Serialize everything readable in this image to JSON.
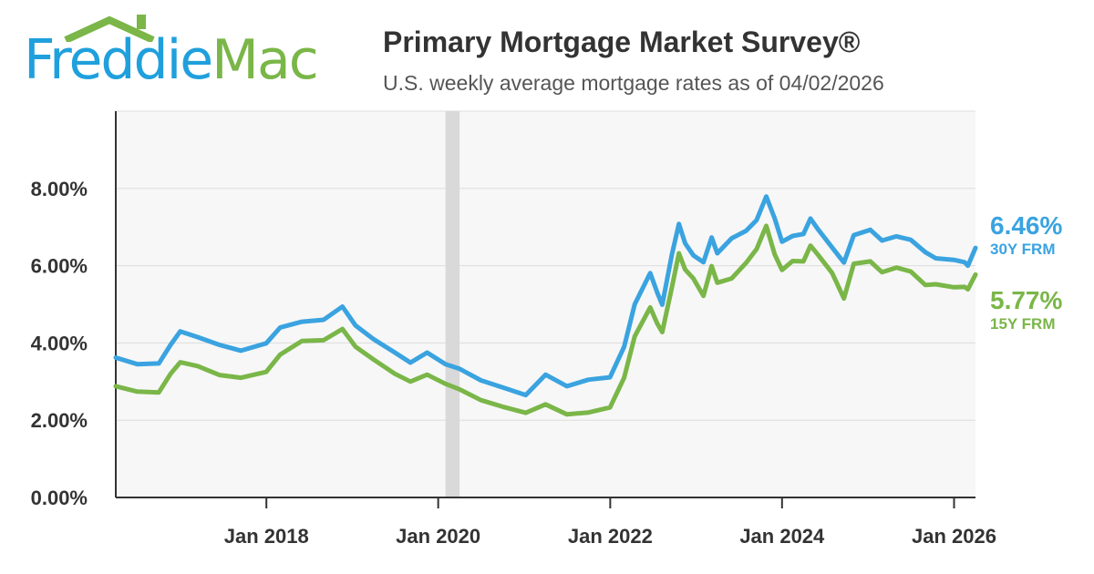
{
  "brand": {
    "word1": "Freddie",
    "word2": "Mac"
  },
  "header": {
    "title": "Primary Mortgage Market Survey®",
    "subtitle": "U.S. weekly average mortgage rates as of 04/02/2026"
  },
  "colors": {
    "series_30y": "#3aa3e0",
    "series_15y": "#7ab648",
    "plot_bg": "#f7f7f7",
    "highlight_band": "#d9d9d9"
  },
  "end_labels": [
    {
      "value": "6.46%",
      "name": "30Y FRM"
    },
    {
      "value": "5.77%",
      "name": "15Y FRM"
    }
  ],
  "chart_data": {
    "type": "line",
    "title": "Primary Mortgage Market Survey®",
    "subtitle": "U.S. weekly average mortgage rates as of 04/02/2026",
    "xlabel": "",
    "ylabel": "",
    "xlim": [
      "2016-04-01",
      "2026-04-02"
    ],
    "ylim": [
      0,
      10
    ],
    "yticks": [
      0,
      2,
      4,
      6,
      8
    ],
    "ytick_labels": [
      "0.00%",
      "2.00%",
      "4.00%",
      "6.00%",
      "8.00%"
    ],
    "xticks": [
      "2018-01-01",
      "2020-01-01",
      "2022-01-01",
      "2024-01-01",
      "2026-01-01"
    ],
    "xtick_labels": [
      "Jan 2018",
      "Jan 2020",
      "Jan 2022",
      "Jan 2024",
      "Jan 2026"
    ],
    "grid": true,
    "highlight_band": [
      "2020-02-01",
      "2020-04-01"
    ],
    "series": [
      {
        "name": "30Y FRM",
        "x": [
          "2016-04-01",
          "2016-07-01",
          "2016-10-01",
          "2016-11-20",
          "2016-12-31",
          "2017-03-15",
          "2017-06-15",
          "2017-09-15",
          "2017-12-31",
          "2018-03-01",
          "2018-06-01",
          "2018-09-01",
          "2018-11-20",
          "2019-01-15",
          "2019-04-01",
          "2019-07-01",
          "2019-09-05",
          "2019-11-15",
          "2020-02-01",
          "2020-04-01",
          "2020-07-01",
          "2020-10-01",
          "2021-01-07",
          "2021-04-01",
          "2021-07-01",
          "2021-10-01",
          "2021-12-31",
          "2022-03-01",
          "2022-04-15",
          "2022-06-20",
          "2022-07-20",
          "2022-08-10",
          "2022-09-20",
          "2022-10-20",
          "2022-11-15",
          "2022-12-20",
          "2023-02-01",
          "2023-03-08",
          "2023-04-01",
          "2023-06-01",
          "2023-08-01",
          "2023-09-15",
          "2023-10-26",
          "2023-12-01",
          "2024-01-01",
          "2024-02-15",
          "2024-04-01",
          "2024-05-01",
          "2024-06-01",
          "2024-08-01",
          "2024-09-20",
          "2024-11-01",
          "2025-01-10",
          "2025-03-01",
          "2025-05-01",
          "2025-07-01",
          "2025-09-01",
          "2025-10-15",
          "2025-12-31",
          "2026-02-15",
          "2026-03-01",
          "2026-04-02"
        ],
        "values": [
          3.62,
          3.45,
          3.47,
          3.95,
          4.3,
          4.15,
          3.95,
          3.8,
          3.99,
          4.4,
          4.55,
          4.6,
          4.94,
          4.45,
          4.1,
          3.75,
          3.49,
          3.75,
          3.45,
          3.33,
          3.03,
          2.85,
          2.65,
          3.18,
          2.88,
          3.05,
          3.11,
          3.9,
          5.0,
          5.81,
          5.3,
          4.99,
          6.29,
          7.08,
          6.58,
          6.27,
          6.09,
          6.73,
          6.32,
          6.71,
          6.9,
          7.18,
          7.79,
          7.22,
          6.62,
          6.77,
          6.82,
          7.22,
          6.95,
          6.47,
          6.08,
          6.79,
          6.93,
          6.65,
          6.76,
          6.67,
          6.35,
          6.19,
          6.15,
          6.09,
          6.0,
          6.46
        ]
      },
      {
        "name": "15Y FRM",
        "x": [
          "2016-04-01",
          "2016-07-01",
          "2016-10-01",
          "2016-11-20",
          "2016-12-31",
          "2017-03-15",
          "2017-06-15",
          "2017-09-15",
          "2017-12-31",
          "2018-03-01",
          "2018-06-01",
          "2018-09-01",
          "2018-11-20",
          "2019-01-15",
          "2019-04-01",
          "2019-07-01",
          "2019-09-05",
          "2019-11-15",
          "2020-02-01",
          "2020-04-01",
          "2020-07-01",
          "2020-10-01",
          "2021-01-07",
          "2021-04-01",
          "2021-07-01",
          "2021-10-01",
          "2021-12-31",
          "2022-03-01",
          "2022-04-15",
          "2022-06-20",
          "2022-07-20",
          "2022-08-10",
          "2022-09-20",
          "2022-10-20",
          "2022-11-15",
          "2022-12-20",
          "2023-02-01",
          "2023-03-08",
          "2023-04-01",
          "2023-06-01",
          "2023-08-01",
          "2023-09-15",
          "2023-10-26",
          "2023-12-01",
          "2024-01-01",
          "2024-02-15",
          "2024-04-01",
          "2024-05-01",
          "2024-06-01",
          "2024-08-01",
          "2024-09-20",
          "2024-11-01",
          "2025-01-10",
          "2025-03-01",
          "2025-05-01",
          "2025-07-01",
          "2025-09-01",
          "2025-10-15",
          "2025-12-31",
          "2026-02-15",
          "2026-03-01",
          "2026-04-02"
        ],
        "values": [
          2.88,
          2.74,
          2.72,
          3.2,
          3.5,
          3.4,
          3.17,
          3.1,
          3.25,
          3.7,
          4.05,
          4.07,
          4.36,
          3.9,
          3.57,
          3.2,
          3.0,
          3.18,
          2.94,
          2.8,
          2.52,
          2.35,
          2.19,
          2.41,
          2.15,
          2.2,
          2.33,
          3.1,
          4.17,
          4.92,
          4.5,
          4.28,
          5.44,
          6.32,
          5.9,
          5.67,
          5.22,
          5.99,
          5.56,
          5.67,
          6.07,
          6.43,
          7.03,
          6.29,
          5.89,
          6.12,
          6.11,
          6.52,
          6.29,
          5.81,
          5.15,
          6.05,
          6.11,
          5.83,
          5.95,
          5.85,
          5.5,
          5.52,
          5.44,
          5.45,
          5.39,
          5.77
        ]
      }
    ]
  }
}
